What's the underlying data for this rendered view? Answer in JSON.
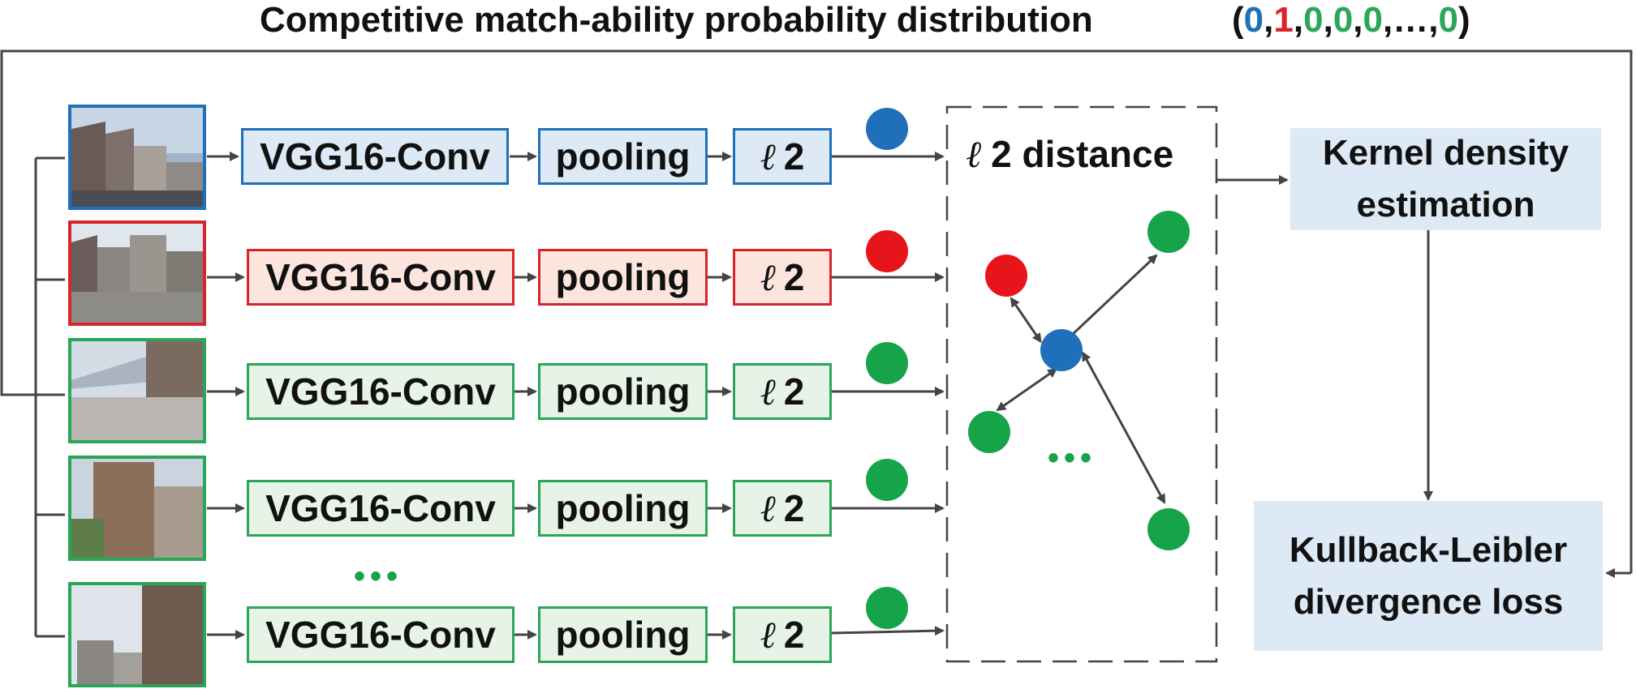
{
  "title": "Competitive match-ability probability distribution",
  "vector": {
    "open": "(",
    "close": ")",
    "comma": ",",
    "ellipsis": "…",
    "items": [
      {
        "value": "0",
        "color": "#1f6fba"
      },
      {
        "value": "1",
        "color": "#d8242b"
      },
      {
        "value": "0",
        "color": "#2aa657"
      },
      {
        "value": "0",
        "color": "#2aa657"
      },
      {
        "value": "0",
        "color": "#2aa657"
      },
      {
        "value": "0",
        "color": "#2aa657"
      }
    ]
  },
  "blocks": {
    "conv": "VGG16-Conv",
    "pool": "pooling",
    "l2_symbol": "ℓ",
    "l2_number": "2"
  },
  "distance": {
    "symbol": "ℓ",
    "label": "2 distance"
  },
  "kde": {
    "line1": "Kernel density",
    "line2": "estimation"
  },
  "kl": {
    "line1": "Kullback-Leibler",
    "line2": "divergence loss"
  },
  "ellipsis_dots": "•••",
  "colors": {
    "blue": "#1f6fba",
    "red": "#d8242b",
    "green": "#2aa657",
    "panel": "#dde9f4",
    "arrow": "#444444"
  },
  "rows": [
    {
      "role": "query",
      "color": "blue"
    },
    {
      "role": "positive",
      "color": "red"
    },
    {
      "role": "negative",
      "color": "green"
    },
    {
      "role": "negative",
      "color": "green"
    },
    {
      "role": "negative",
      "color": "green"
    }
  ]
}
